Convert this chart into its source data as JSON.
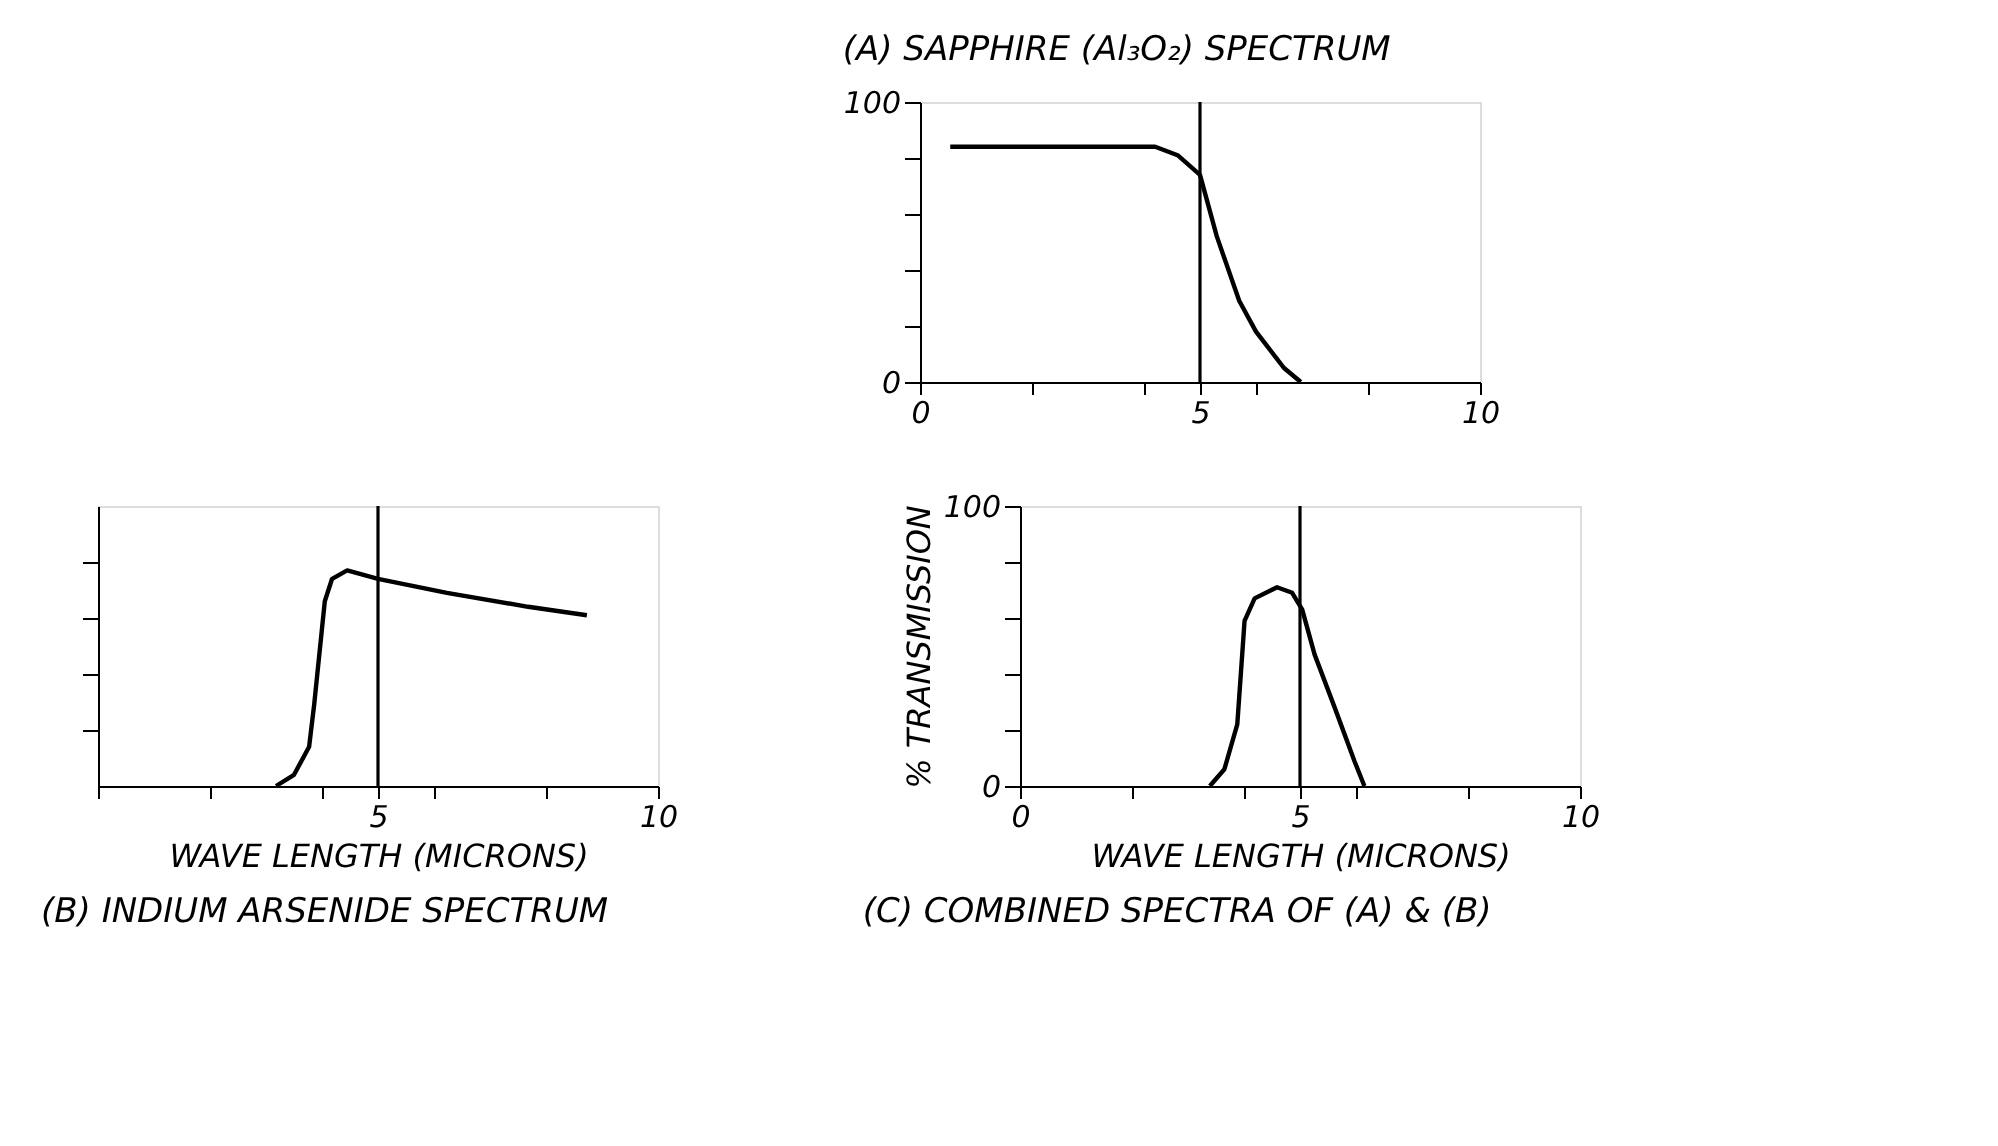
{
  "chart_data": [
    {
      "type": "line",
      "title": "(A) SAPPHIRE (Al₃O₂) SPECTRUM",
      "x": [
        0.54,
        1.5,
        2.5,
        3.5,
        4.2,
        4.6,
        5.0,
        5.3,
        5.7,
        6.0,
        6.5,
        6.8
      ],
      "series": [
        {
          "color": "#000000",
          "values": [
            84,
            84,
            84,
            84,
            84,
            81,
            74,
            52,
            29,
            18,
            5,
            0
          ]
        }
      ],
      "xlim": [
        0,
        10
      ],
      "ylim": [
        0,
        100
      ],
      "xticks": [
        0,
        {
          "value": 2,
          "label": null
        },
        {
          "value": 4,
          "label": null
        },
        5,
        {
          "value": 6,
          "label": null
        },
        {
          "value": 8,
          "label": null
        },
        10
      ],
      "yticks": [
        0,
        {
          "value": 20,
          "label": null
        },
        {
          "value": 40,
          "label": null
        },
        {
          "value": 60,
          "label": null
        },
        {
          "value": 80,
          "label": null
        },
        100
      ],
      "ref_lines": [
        {
          "axis": "x",
          "value": 5,
          "color": "#000000"
        }
      ],
      "grid": false,
      "marker": "none",
      "line_style": "solid"
    },
    {
      "type": "line",
      "title": "(B) INDIUM ARSENIDE SPECTRUM",
      "xlabel": "WAVE LENGTH (MICRONS)",
      "x": [
        3.18,
        3.5,
        3.77,
        3.86,
        4.05,
        4.18,
        4.45,
        5.0,
        6.23,
        7.68,
        8.73
      ],
      "series": [
        {
          "color": "#000000",
          "values": [
            0,
            4,
            14,
            29,
            66,
            74,
            77,
            74,
            69,
            64,
            61
          ]
        }
      ],
      "xlim": [
        0,
        10
      ],
      "ylim": [
        0,
        100
      ],
      "xticks": [
        {
          "value": 0,
          "label": null
        },
        {
          "value": 2,
          "label": null
        },
        {
          "value": 4,
          "label": null
        },
        5,
        {
          "value": 6,
          "label": null
        },
        {
          "value": 8,
          "label": null
        },
        10
      ],
      "yticks": [
        {
          "value": 20,
          "label": null
        },
        {
          "value": 40,
          "label": null
        },
        {
          "value": 60,
          "label": null
        },
        {
          "value": 80,
          "label": null
        }
      ],
      "tick_labels": "x",
      "ref_lines": [
        {
          "axis": "x",
          "value": 5,
          "color": "#000000"
        }
      ],
      "grid": false,
      "marker": "none",
      "line_style": "solid"
    },
    {
      "type": "line",
      "title": "(C) COMBINED SPECTRA OF (A) & (B)",
      "xlabel": "WAVE LENGTH (MICRONS)",
      "ylabel": "% TRANSMISSION",
      "x": [
        3.39,
        3.65,
        3.88,
        4.01,
        4.19,
        4.59,
        4.86,
        5.04,
        5.26,
        5.62,
        5.97,
        6.15
      ],
      "series": [
        {
          "color": "#000000",
          "values": [
            0,
            6,
            22,
            59,
            67,
            71,
            69,
            63,
            47,
            28,
            9,
            0
          ]
        }
      ],
      "xlim": [
        0,
        10
      ],
      "ylim": [
        0,
        100
      ],
      "xticks": [
        0,
        {
          "value": 2,
          "label": null
        },
        {
          "value": 4,
          "label": null
        },
        5,
        {
          "value": 6,
          "label": null
        },
        {
          "value": 8,
          "label": null
        },
        10
      ],
      "yticks": [
        0,
        {
          "value": 20,
          "label": null
        },
        {
          "value": 40,
          "label": null
        },
        {
          "value": 60,
          "label": null
        },
        {
          "value": 80,
          "label": null
        },
        100
      ],
      "ref_lines": [
        {
          "axis": "x",
          "value": 5,
          "color": "#000000"
        }
      ],
      "grid": false,
      "marker": "none",
      "line_style": "solid"
    }
  ]
}
